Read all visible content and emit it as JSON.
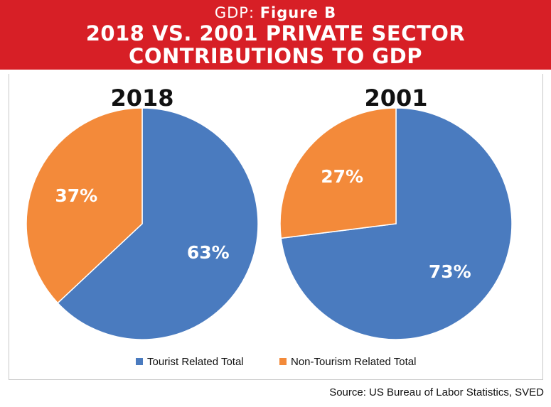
{
  "header": {
    "kicker_prefix": "GDP: ",
    "kicker_bold": "Figure B",
    "title_line1": "2018 VS. 2001 PRIVATE SECTOR",
    "title_line2": "CONTRIBUTIONS TO GDP"
  },
  "source": "Source: US Bureau of Labor Statistics, SVED",
  "colors": {
    "header_bg": "#d71f26",
    "tourist": "#4a7bbf",
    "non_tourism": "#f38a3a"
  },
  "chart_data": [
    {
      "type": "pie",
      "title": "2018",
      "labels": [
        "Tourist Related Total",
        "Non-Tourism Related Total"
      ],
      "values": [
        63,
        37
      ],
      "value_labels": [
        "63%",
        "37%"
      ],
      "legend_position": "bottom"
    },
    {
      "type": "pie",
      "title": "2001",
      "labels": [
        "Tourist Related Total",
        "Non-Tourism Related Total"
      ],
      "values": [
        73,
        27
      ],
      "value_labels": [
        "73%",
        "27%"
      ],
      "legend_position": "bottom"
    }
  ],
  "legend": {
    "items": [
      {
        "label": "Tourist Related Total",
        "color": "#4a7bbf"
      },
      {
        "label": "Non-Tourism Related Total",
        "color": "#f38a3a"
      }
    ]
  }
}
